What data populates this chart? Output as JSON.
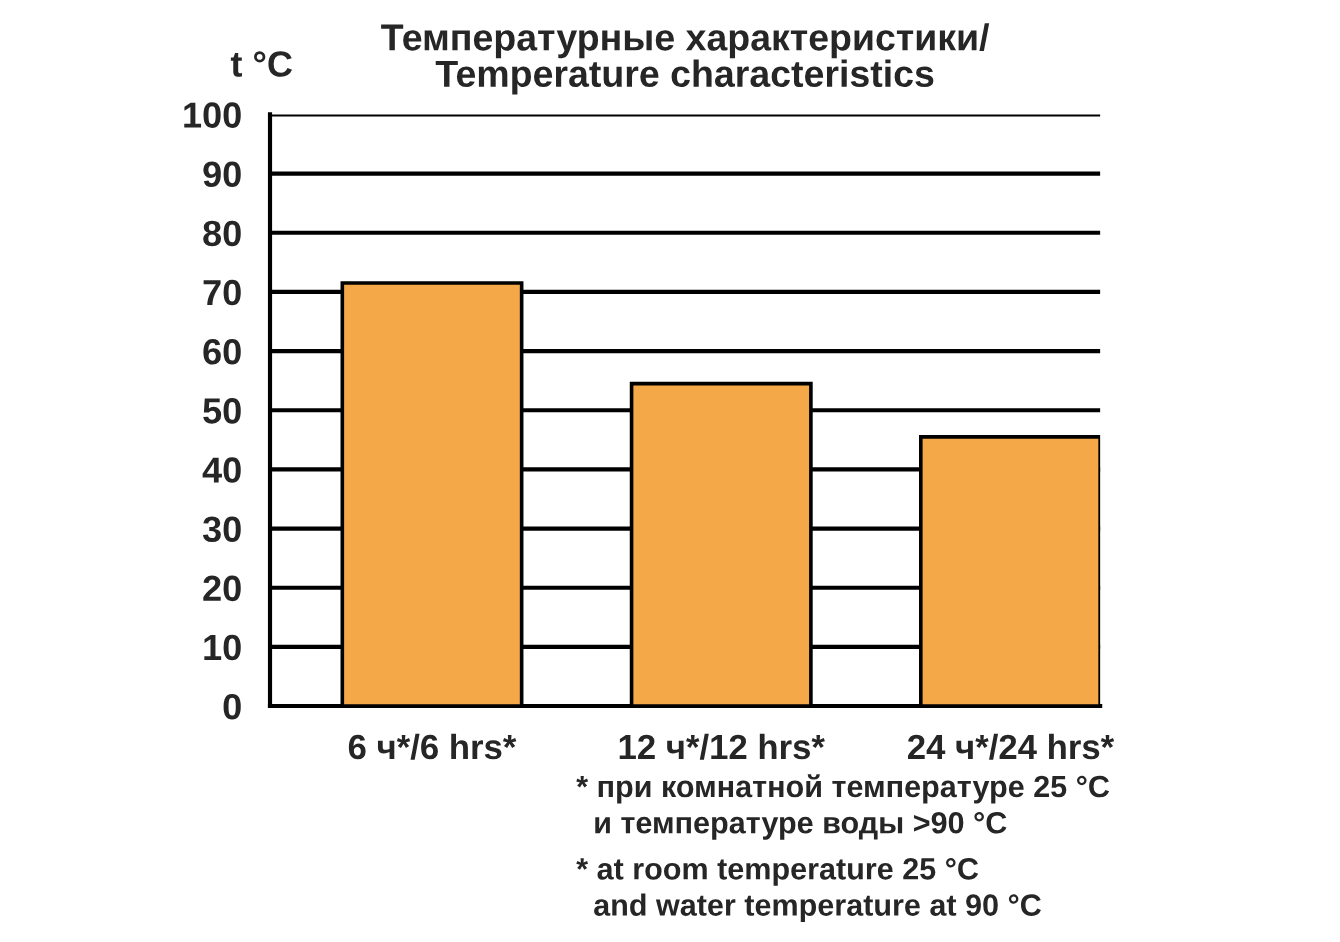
{
  "chart_data": {
    "type": "bar",
    "title": "Температурные характеристики/\nTemperature characteristics",
    "ylabel": "t °C",
    "categories": [
      "6 ч*/6 hrs*",
      "12 ч*/12 hrs*",
      "24 ч*/24 hrs*"
    ],
    "values": [
      71.5,
      54.5,
      45.5
    ],
    "color": "#f4a847",
    "ylim": [
      0,
      100
    ],
    "yticks": [
      0,
      10,
      20,
      30,
      40,
      50,
      60,
      70,
      80,
      90,
      100
    ],
    "grid": "y",
    "annotations": [
      "* при комнатной температуре 25 °C\n  и температуре воды >90 °C",
      "* at room temperature 25 °C\n  and water temperature at 90 °C"
    ]
  }
}
